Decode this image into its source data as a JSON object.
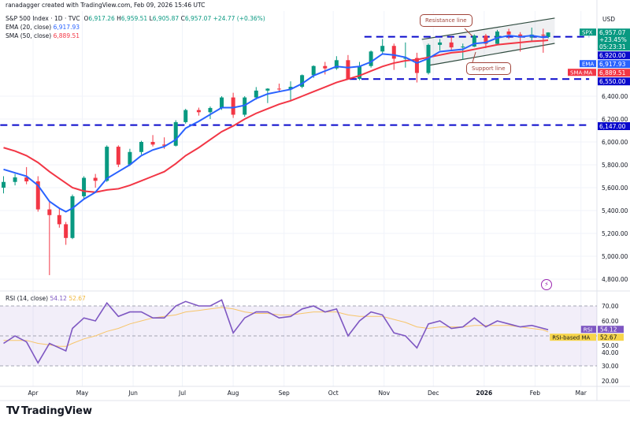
{
  "header": {
    "credit": "ranadagger created with TradingView.com, Feb 09, 2026 15:46 UTC",
    "symbol": "S&P 500 Index · 1D · TVC",
    "open_label": "O",
    "open": "6,917.26",
    "high_label": "H",
    "high": "6,959.51",
    "low_label": "L",
    "low": "6,905.87",
    "close_label": "C",
    "close": "6,957.07",
    "change": "+24.77 (+0.36%)",
    "ema_label": "EMA (20, close)",
    "ema_value": "6,917.93",
    "sma_label": "SMA (50, close)",
    "sma_value": "6,889.51",
    "rsi_label": "RSI (14, close)",
    "rsi_value": "54.12",
    "rsi_ma_value": "52.67"
  },
  "currency": "USD",
  "footer": {
    "logo_text": "TradingView"
  },
  "colors": {
    "up": "#089981",
    "down": "#f23645",
    "ema": "#2962ff",
    "sma": "#f23645",
    "rsi": "#7e57c2",
    "rsi_ma": "#f7c56a",
    "level": "#0a0acc",
    "channel": "#2e4a3e"
  },
  "annotations": {
    "resistance": "Resistance line",
    "support": "Support line"
  },
  "icons": {
    "alert": "lightning-icon",
    "logo": "tradingview-logo"
  },
  "price_tags": [
    {
      "tag": "SPX",
      "lines": [
        "6,957.07",
        "+23.45%",
        "05:23:31"
      ],
      "price": 6957.07,
      "color": "#089981"
    },
    {
      "tag": "",
      "lines": [
        "6,920.00"
      ],
      "price": 6920,
      "color": "#0a0acc"
    },
    {
      "tag": "EMA",
      "lines": [
        "6,917.93"
      ],
      "price": 6917.93,
      "color": "#2962ff"
    },
    {
      "tag": "SMA:MA",
      "lines": [
        "6,889.51"
      ],
      "price": 6889.51,
      "color": "#f23645"
    },
    {
      "tag": "",
      "lines": [
        "6,550.00"
      ],
      "price": 6550,
      "color": "#0a0acc"
    },
    {
      "tag": "",
      "lines": [
        "6,147.00"
      ],
      "price": 6147,
      "color": "#0a0acc"
    }
  ],
  "rsi_tags": [
    {
      "tag": "RSI",
      "value": "54.12",
      "level": 54.12,
      "color": "#7e57c2",
      "text": "#fff"
    },
    {
      "tag": "RSI-based MA",
      "value": "52.67",
      "level": 52.67,
      "color": "#f7d54a",
      "text": "#131722"
    }
  ],
  "chart_data": {
    "type": "candlestick",
    "title": "S&P 500 Index · 1D · TVC",
    "price_ticks": [
      "6,400.00",
      "6,200.00",
      "6,000.00",
      "5,800.00",
      "5,600.00",
      "5,400.00",
      "5,200.00",
      "5,000.00",
      "4,800.00"
    ],
    "price_tick_values": [
      6400,
      6200,
      6000,
      5800,
      5600,
      5400,
      5200,
      5000,
      4800
    ],
    "price_range": [
      4700,
      7150
    ],
    "rsi_ticks": [
      "70.00",
      "60.00",
      "50.00",
      "40.00",
      "30.00",
      "20.00"
    ],
    "rsi_tick_values": [
      70,
      60,
      50,
      40,
      30,
      20
    ],
    "rsi_range": [
      17,
      78
    ],
    "rsi_band": [
      30,
      70
    ],
    "x_labels": [
      {
        "label": "Apr",
        "date": "2025-04-01"
      },
      {
        "label": "May",
        "date": "2025-05-01"
      },
      {
        "label": "Jun",
        "date": "2025-06-01"
      },
      {
        "label": "Jul",
        "date": "2025-07-01"
      },
      {
        "label": "Aug",
        "date": "2025-08-01"
      },
      {
        "label": "Sep",
        "date": "2025-09-01"
      },
      {
        "label": "Oct",
        "date": "2025-10-01"
      },
      {
        "label": "Nov",
        "date": "2025-11-01"
      },
      {
        "label": "Dec",
        "date": "2025-12-01"
      },
      {
        "label": "2026",
        "date": "2026-01-01"
      },
      {
        "label": "Feb",
        "date": "2026-02-01"
      },
      {
        "label": "Mar",
        "date": "2026-03-01"
      }
    ],
    "ohlc": [
      [
        "2025-03-14",
        5600,
        5700,
        5550,
        5650
      ],
      [
        "2025-03-21",
        5650,
        5720,
        5620,
        5690
      ],
      [
        "2025-03-28",
        5690,
        5780,
        5630,
        5655
      ],
      [
        "2025-04-04",
        5655,
        5700,
        5390,
        5410
      ],
      [
        "2025-04-11",
        5410,
        5480,
        4835,
        5360
      ],
      [
        "2025-04-17",
        5360,
        5420,
        5250,
        5280
      ],
      [
        "2025-04-21",
        5280,
        5300,
        5100,
        5160
      ],
      [
        "2025-04-25",
        5160,
        5540,
        5150,
        5525
      ],
      [
        "2025-05-02",
        5525,
        5700,
        5500,
        5686
      ],
      [
        "2025-05-09",
        5686,
        5720,
        5600,
        5660
      ],
      [
        "2025-05-16",
        5660,
        5970,
        5650,
        5958
      ],
      [
        "2025-05-23",
        5958,
        5970,
        5780,
        5802
      ],
      [
        "2025-05-30",
        5802,
        5940,
        5790,
        5912
      ],
      [
        "2025-06-06",
        5912,
        6010,
        5890,
        6000
      ],
      [
        "2025-06-13",
        6000,
        6060,
        5960,
        5977
      ],
      [
        "2025-06-20",
        5977,
        6040,
        5940,
        5967
      ],
      [
        "2025-06-27",
        5967,
        6190,
        5960,
        6173
      ],
      [
        "2025-07-03",
        6173,
        6290,
        6160,
        6279
      ],
      [
        "2025-07-11",
        6279,
        6300,
        6230,
        6260
      ],
      [
        "2025-07-18",
        6260,
        6310,
        6200,
        6297
      ],
      [
        "2025-07-25",
        6297,
        6400,
        6280,
        6389
      ],
      [
        "2025-08-01",
        6389,
        6430,
        6210,
        6238
      ],
      [
        "2025-08-08",
        6238,
        6400,
        6220,
        6389
      ],
      [
        "2025-08-15",
        6389,
        6480,
        6370,
        6449
      ],
      [
        "2025-08-22",
        6449,
        6470,
        6340,
        6466
      ],
      [
        "2025-08-29",
        6466,
        6510,
        6440,
        6460
      ],
      [
        "2025-09-05",
        6460,
        6530,
        6360,
        6482
      ],
      [
        "2025-09-12",
        6482,
        6590,
        6470,
        6584
      ],
      [
        "2025-09-19",
        6584,
        6670,
        6560,
        6664
      ],
      [
        "2025-09-26",
        6664,
        6700,
        6590,
        6643
      ],
      [
        "2025-10-03",
        6643,
        6750,
        6630,
        6715
      ],
      [
        "2025-10-10",
        6715,
        6760,
        6550,
        6552
      ],
      [
        "2025-10-17",
        6552,
        6700,
        6540,
        6664
      ],
      [
        "2025-10-24",
        6664,
        6800,
        6650,
        6791
      ],
      [
        "2025-10-31",
        6791,
        6900,
        6770,
        6840
      ],
      [
        "2025-11-07",
        6840,
        6860,
        6630,
        6728
      ],
      [
        "2025-11-14",
        6728,
        6870,
        6650,
        6734
      ],
      [
        "2025-11-21",
        6734,
        6780,
        6520,
        6603
      ],
      [
        "2025-11-28",
        6603,
        6860,
        6590,
        6849
      ],
      [
        "2025-12-05",
        6849,
        6900,
        6800,
        6870
      ],
      [
        "2025-12-12",
        6870,
        6920,
        6800,
        6827
      ],
      [
        "2025-12-19",
        6827,
        6860,
        6720,
        6834
      ],
      [
        "2025-12-26",
        6834,
        6940,
        6830,
        6930
      ],
      [
        "2026-01-02",
        6930,
        6945,
        6820,
        6858
      ],
      [
        "2026-01-09",
        6858,
        6980,
        6850,
        6966
      ],
      [
        "2026-01-16",
        6966,
        6990,
        6900,
        6940
      ],
      [
        "2026-01-23",
        6940,
        6960,
        6790,
        6915
      ],
      [
        "2026-01-30",
        6915,
        7000,
        6880,
        6939
      ],
      [
        "2026-02-06",
        6939,
        6990,
        6780,
        6932
      ],
      [
        "2026-02-09",
        6917.26,
        6959.51,
        6905.87,
        6957.07
      ]
    ],
    "ema20": [
      5760,
      5730,
      5700,
      5620,
      5480,
      5420,
      5390,
      5420,
      5500,
      5560,
      5680,
      5740,
      5800,
      5880,
      5930,
      5960,
      6020,
      6120,
      6180,
      6240,
      6300,
      6300,
      6320,
      6380,
      6420,
      6440,
      6460,
      6510,
      6580,
      6620,
      6660,
      6650,
      6660,
      6700,
      6770,
      6760,
      6740,
      6690,
      6730,
      6790,
      6800,
      6810,
      6860,
      6870,
      6910,
      6930,
      6920,
      6930,
      6915,
      6917.93
    ],
    "sma50": [
      5950,
      5920,
      5880,
      5820,
      5740,
      5680,
      5640,
      5600,
      5570,
      5560,
      5580,
      5590,
      5620,
      5660,
      5700,
      5740,
      5810,
      5880,
      5950,
      6020,
      6090,
      6140,
      6200,
      6250,
      6290,
      6330,
      6360,
      6400,
      6440,
      6480,
      6520,
      6550,
      6580,
      6620,
      6660,
      6690,
      6710,
      6720,
      6740,
      6760,
      6780,
      6790,
      6810,
      6830,
      6850,
      6860,
      6870,
      6880,
      6885,
      6889.51
    ],
    "rsi": [
      45,
      50,
      46,
      32,
      45,
      42,
      40,
      55,
      62,
      60,
      72,
      63,
      66,
      66,
      62,
      62,
      70,
      73,
      70,
      70,
      74,
      52,
      62,
      66,
      66,
      62,
      63,
      68,
      70,
      66,
      68,
      50,
      60,
      66,
      64,
      52,
      50,
      42,
      58,
      60,
      55,
      56,
      62,
      56,
      60,
      58,
      56,
      57,
      55,
      54.12
    ],
    "rsi_ma": [
      47,
      47,
      47,
      45,
      44,
      43,
      43,
      45,
      48,
      50,
      53,
      55,
      58,
      60,
      62,
      63,
      64,
      66,
      67,
      68,
      69,
      68,
      66,
      65,
      65,
      64,
      64,
      65,
      66,
      66,
      66,
      64,
      63,
      63,
      63,
      61,
      59,
      56,
      55,
      56,
      56,
      56,
      57,
      57,
      57,
      57,
      56,
      55,
      54,
      52.67
    ],
    "levels": [
      {
        "price": 6920,
        "from": "2025-10-20",
        "to": "2026-03-06"
      },
      {
        "price": 6550,
        "from": "2025-10-11",
        "to": "2026-03-06"
      },
      {
        "price": 6147,
        "from": "2025-03-12",
        "to": "2026-03-06"
      }
    ],
    "channel": {
      "resistance": [
        [
          "2025-11-24",
          6897
        ],
        [
          "2026-02-13",
          7083
        ]
      ],
      "support": [
        [
          "2025-11-28",
          6669
        ],
        [
          "2026-02-13",
          6862
        ]
      ]
    }
  }
}
